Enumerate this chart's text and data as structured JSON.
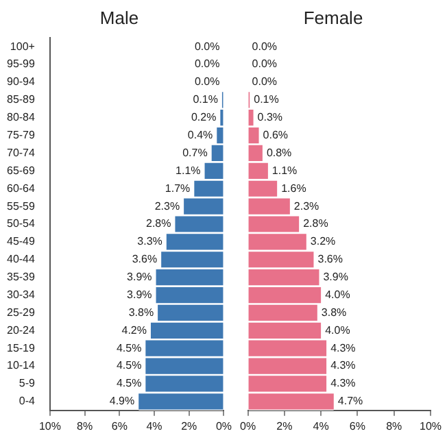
{
  "chart_data": [
    {
      "type": "bar",
      "orientation": "horizontal",
      "legend": false,
      "grid": false,
      "title": "Male",
      "categories": [
        "100+",
        "95-99",
        "90-94",
        "85-89",
        "80-84",
        "75-79",
        "70-74",
        "65-69",
        "60-64",
        "55-59",
        "50-54",
        "45-49",
        "40-44",
        "35-39",
        "30-34",
        "25-29",
        "20-24",
        "15-19",
        "10-14",
        "5-9",
        "0-4"
      ],
      "series": [
        {
          "color": "#3e78b2",
          "values": [
            0.0,
            0.0,
            0.0,
            0.1,
            0.2,
            0.4,
            0.7,
            1.1,
            1.7,
            2.3,
            2.8,
            3.3,
            3.6,
            3.9,
            3.9,
            3.8,
            4.2,
            4.5,
            4.5,
            4.5,
            4.9
          ],
          "value_labels": [
            "0.0%",
            "0.0%",
            "0.0%",
            "0.1%",
            "0.2%",
            "0.4%",
            "0.7%",
            "1.1%",
            "1.7%",
            "2.3%",
            "2.8%",
            "3.3%",
            "3.6%",
            "3.9%",
            "3.9%",
            "3.8%",
            "4.2%",
            "4.5%",
            "4.5%",
            "4.5%",
            "4.9%"
          ]
        }
      ],
      "xlim": [
        10,
        0
      ],
      "xticks": [
        {
          "value": 10,
          "label": "10%"
        },
        {
          "value": 8,
          "label": "8%"
        },
        {
          "value": 6,
          "label": "6%"
        },
        {
          "value": 4,
          "label": "4%"
        },
        {
          "value": 2,
          "label": "2%"
        },
        {
          "value": 0,
          "label": "0%"
        }
      ]
    },
    {
      "type": "bar",
      "orientation": "horizontal",
      "legend": false,
      "grid": false,
      "title": "Female",
      "tick_labels": "x",
      "categories": [
        null,
        null,
        null,
        null,
        null,
        null,
        null,
        null,
        null,
        null,
        null,
        null,
        null,
        null,
        null,
        null,
        null,
        null,
        null,
        null,
        null
      ],
      "series": [
        {
          "color": "#e8718a",
          "values": [
            0.0,
            0.0,
            0.0,
            0.1,
            0.3,
            0.6,
            0.8,
            1.1,
            1.6,
            2.3,
            2.8,
            3.2,
            3.6,
            3.9,
            4.0,
            3.8,
            4.0,
            4.3,
            4.3,
            4.3,
            4.7
          ],
          "value_labels": [
            "0.0%",
            "0.0%",
            "0.0%",
            "0.1%",
            "0.3%",
            "0.6%",
            "0.8%",
            "1.1%",
            "1.6%",
            "2.3%",
            "2.8%",
            "3.2%",
            "3.6%",
            "3.9%",
            "4.0%",
            "3.8%",
            "4.0%",
            "4.3%",
            "4.3%",
            "4.3%",
            "4.7%"
          ]
        }
      ],
      "xlim": [
        0,
        10
      ],
      "xticks": [
        {
          "value": 0,
          "label": "0%"
        },
        {
          "value": 2,
          "label": "2%"
        },
        {
          "value": 4,
          "label": "4%"
        },
        {
          "value": 6,
          "label": "6%"
        },
        {
          "value": 8,
          "label": "8%"
        },
        {
          "value": 10,
          "label": "10%"
        }
      ]
    }
  ]
}
